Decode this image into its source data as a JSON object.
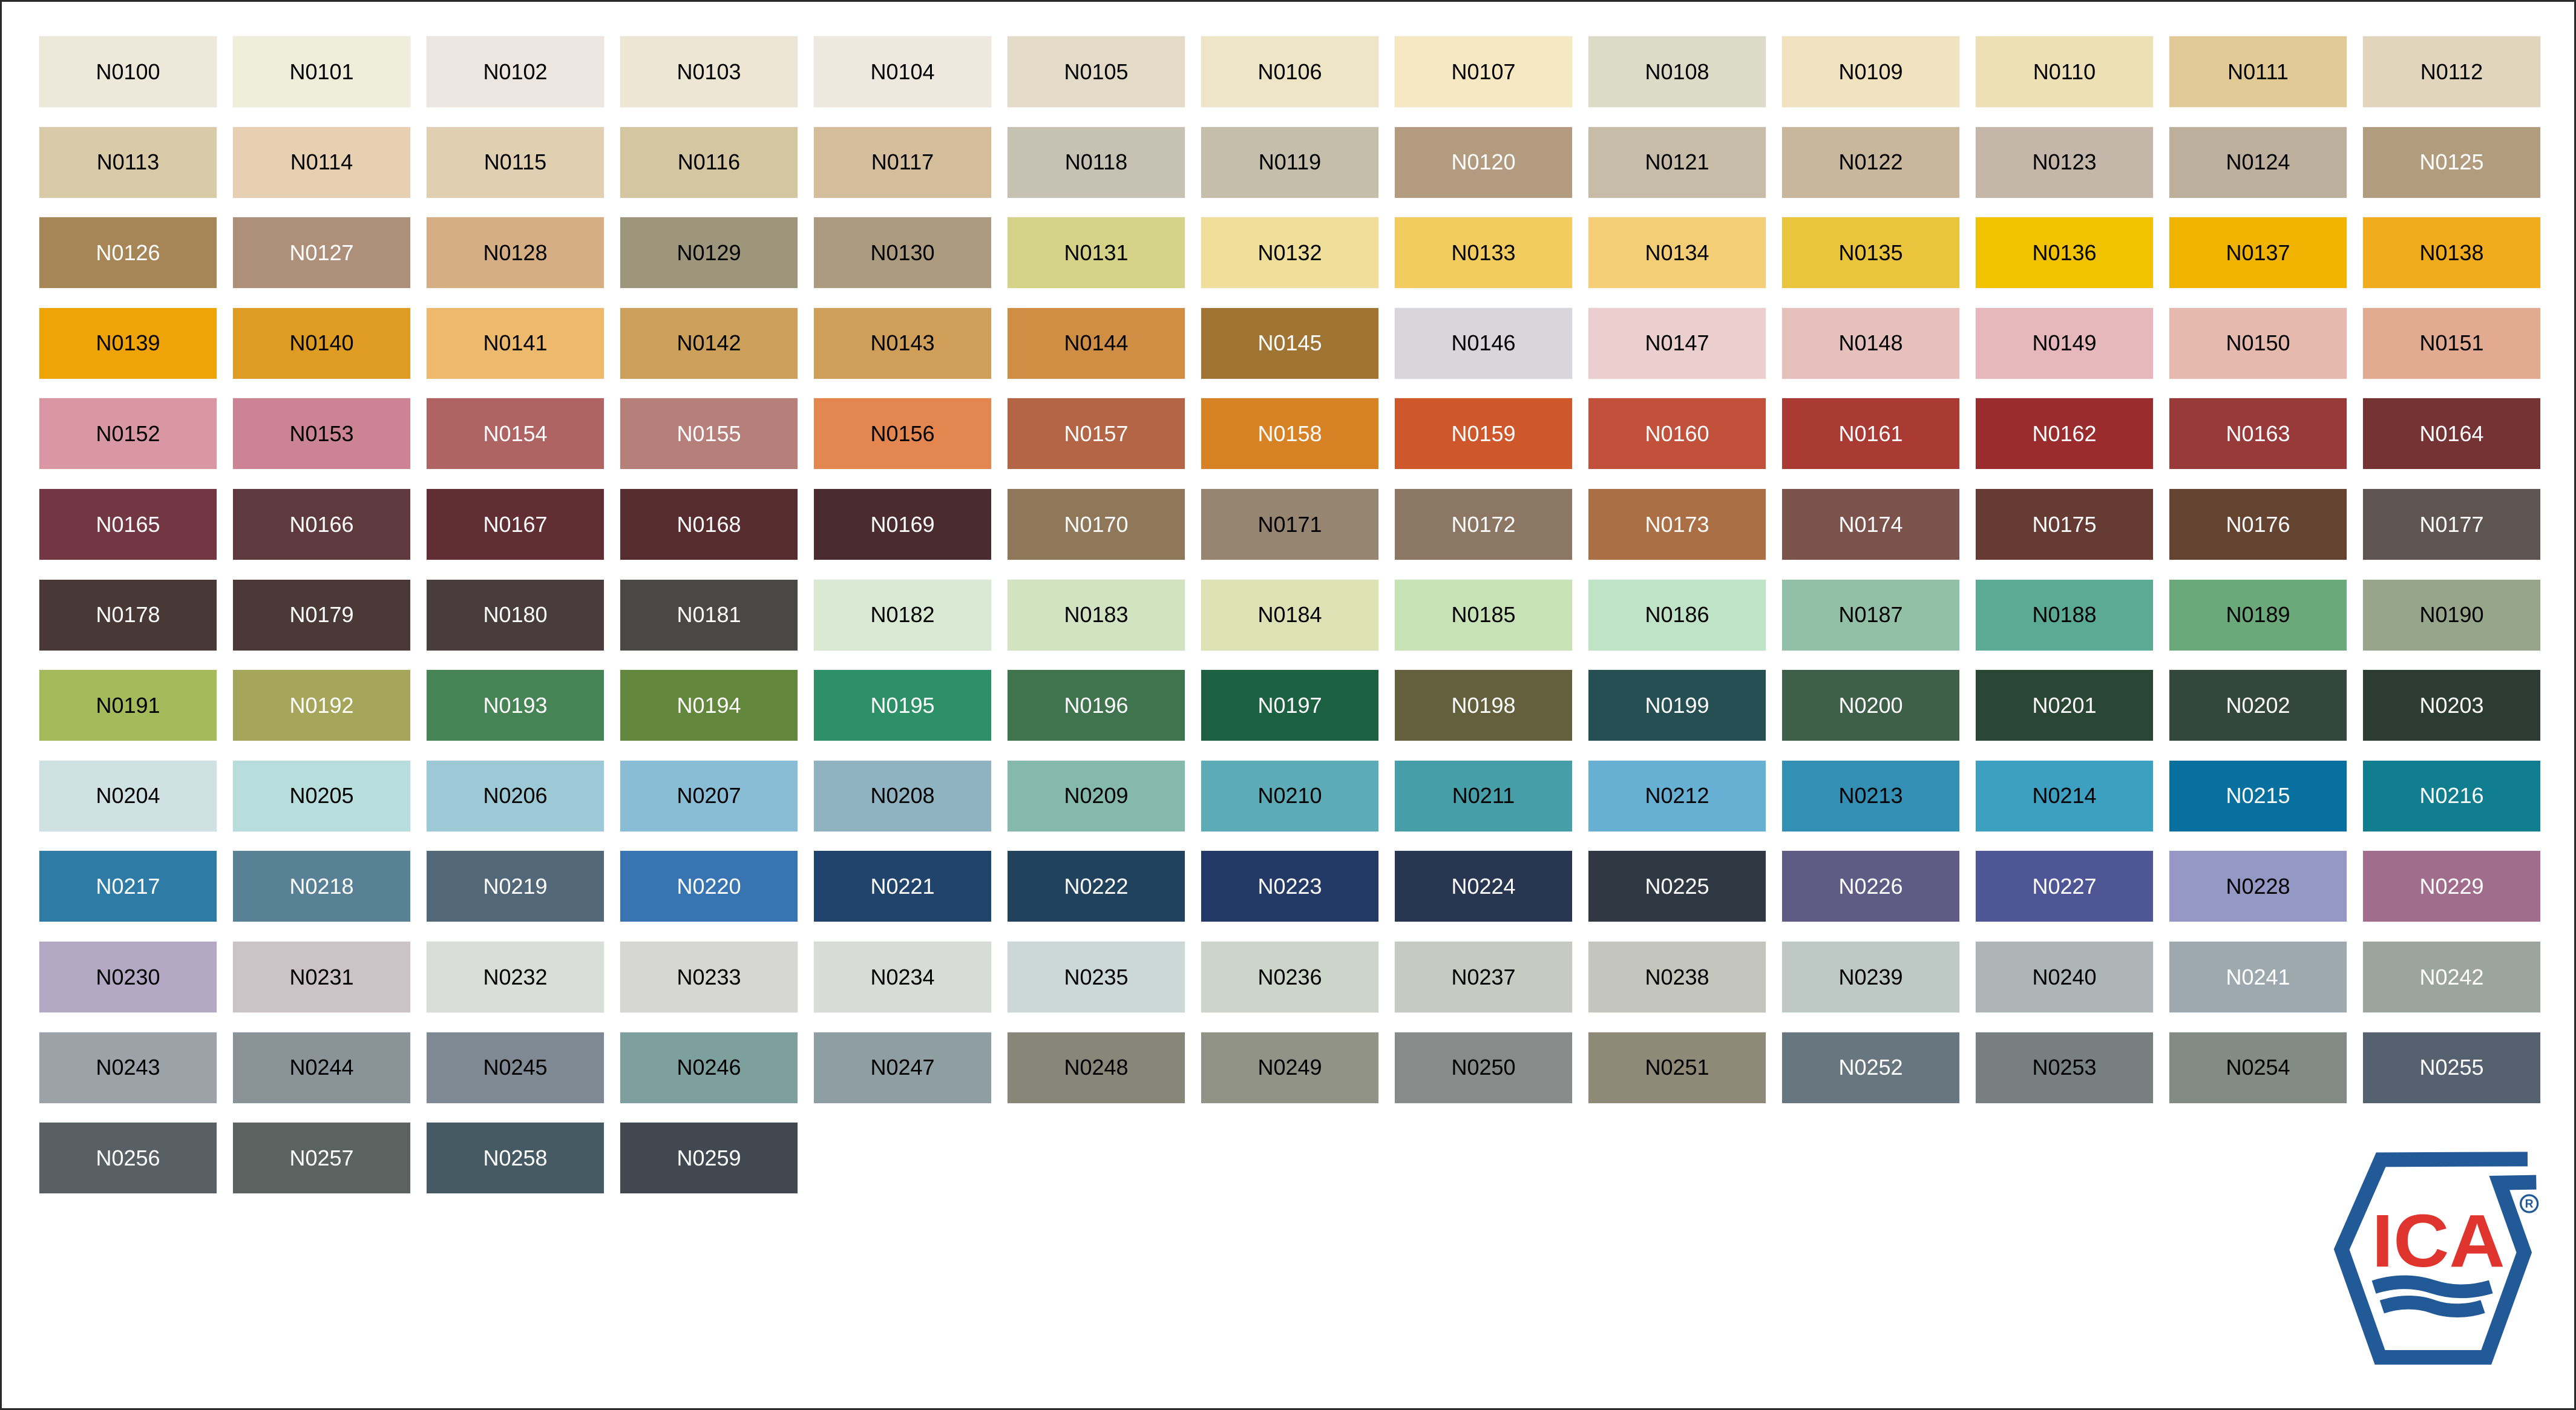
{
  "colors": {
    "logo_blue": "#225A97",
    "logo_red": "#E0342F"
  },
  "logo": {
    "text": "ICA",
    "registered": "R"
  },
  "swatches": [
    {
      "code": "N0100",
      "color": "#ECE9DA",
      "text": "#000000"
    },
    {
      "code": "N0101",
      "color": "#EFEEDA",
      "text": "#000000"
    },
    {
      "code": "N0102",
      "color": "#ECE5E0",
      "text": "#000000"
    },
    {
      "code": "N0103",
      "color": "#EEE6D5",
      "text": "#000000"
    },
    {
      "code": "N0104",
      "color": "#EFE8DE",
      "text": "#000000"
    },
    {
      "code": "N0105",
      "color": "#E3DAC7",
      "text": "#000000"
    },
    {
      "code": "N0106",
      "color": "#EEE5C7",
      "text": "#000000"
    },
    {
      "code": "N0107",
      "color": "#F7E8C4",
      "text": "#000000"
    },
    {
      "code": "N0108",
      "color": "#DCDBC8",
      "text": "#000000"
    },
    {
      "code": "N0109",
      "color": "#F1E2C0",
      "text": "#000000"
    },
    {
      "code": "N0110",
      "color": "#EDE0B4",
      "text": "#000000"
    },
    {
      "code": "N0111",
      "color": "#E2CA97",
      "text": "#000000"
    },
    {
      "code": "N0112",
      "color": "#E1D6BD",
      "text": "#000000"
    },
    {
      "code": "N0113",
      "color": "#DACBA8",
      "text": "#000000"
    },
    {
      "code": "N0114",
      "color": "#E7D0B2",
      "text": "#000000"
    },
    {
      "code": "N0115",
      "color": "#E0D0B1",
      "text": "#000000"
    },
    {
      "code": "N0116",
      "color": "#D4C6A0",
      "text": "#000000"
    },
    {
      "code": "N0117",
      "color": "#D4BD9B",
      "text": "#000000"
    },
    {
      "code": "N0118",
      "color": "#C5C1B3",
      "text": "#000000"
    },
    {
      "code": "N0119",
      "color": "#C4BEAA",
      "text": "#000000"
    },
    {
      "code": "N0120",
      "color": "#B29B7E",
      "text": "#FFFFFF"
    },
    {
      "code": "N0121",
      "color": "#C7BCA7",
      "text": "#000000"
    },
    {
      "code": "N0122",
      "color": "#C8B79C",
      "text": "#000000"
    },
    {
      "code": "N0123",
      "color": "#C4B6A8",
      "text": "#000000"
    },
    {
      "code": "N0124",
      "color": "#BCB09C",
      "text": "#000000"
    },
    {
      "code": "N0125",
      "color": "#B29C7E",
      "text": "#FFFFFF"
    },
    {
      "code": "N0126",
      "color": "#A68557",
      "text": "#FFFFFF"
    },
    {
      "code": "N0127",
      "color": "#AE8F7A",
      "text": "#FFFFFF"
    },
    {
      "code": "N0128",
      "color": "#D5AE84",
      "text": "#000000"
    },
    {
      "code": "N0129",
      "color": "#9D957C",
      "text": "#000000"
    },
    {
      "code": "N0130",
      "color": "#AC9B7F",
      "text": "#000000"
    },
    {
      "code": "N0131",
      "color": "#D5D387",
      "text": "#000000"
    },
    {
      "code": "N0132",
      "color": "#F0DF9A",
      "text": "#000000"
    },
    {
      "code": "N0133",
      "color": "#F3CC60",
      "text": "#000000"
    },
    {
      "code": "N0134",
      "color": "#F4CE77",
      "text": "#000000"
    },
    {
      "code": "N0135",
      "color": "#EBC43E",
      "text": "#000000"
    },
    {
      "code": "N0136",
      "color": "#F1C200",
      "text": "#000000"
    },
    {
      "code": "N0137",
      "color": "#F0B400",
      "text": "#000000"
    },
    {
      "code": "N0138",
      "color": "#F0AC1C",
      "text": "#000000"
    },
    {
      "code": "N0139",
      "color": "#EEA307",
      "text": "#000000"
    },
    {
      "code": "N0140",
      "color": "#DF9C23",
      "text": "#000000"
    },
    {
      "code": "N0141",
      "color": "#EDBA6D",
      "text": "#000000"
    },
    {
      "code": "N0142",
      "color": "#CCA05B",
      "text": "#000000"
    },
    {
      "code": "N0143",
      "color": "#CF9F5A",
      "text": "#000000"
    },
    {
      "code": "N0144",
      "color": "#D08D44",
      "text": "#000000"
    },
    {
      "code": "N0145",
      "color": "#A07433",
      "text": "#FFFFFF"
    },
    {
      "code": "N0146",
      "color": "#D8D6DB",
      "text": "#000000"
    },
    {
      "code": "N0147",
      "color": "#EBCFCE",
      "text": "#000000"
    },
    {
      "code": "N0148",
      "color": "#E6C0BC",
      "text": "#000000"
    },
    {
      "code": "N0149",
      "color": "#E6B8BB",
      "text": "#000000"
    },
    {
      "code": "N0150",
      "color": "#E5B9AE",
      "text": "#000000"
    },
    {
      "code": "N0151",
      "color": "#E1AA91",
      "text": "#000000"
    },
    {
      "code": "N0152",
      "color": "#D997A4",
      "text": "#000000"
    },
    {
      "code": "N0153",
      "color": "#CC8495",
      "text": "#000000"
    },
    {
      "code": "N0154",
      "color": "#B06363",
      "text": "#FFFFFF"
    },
    {
      "code": "N0155",
      "color": "#B67F79",
      "text": "#FFFFFF"
    },
    {
      "code": "N0156",
      "color": "#E4864F",
      "text": "#000000"
    },
    {
      "code": "N0157",
      "color": "#B36546",
      "text": "#FFFFFF"
    },
    {
      "code": "N0158",
      "color": "#D88226",
      "text": "#FFFFFF"
    },
    {
      "code": "N0159",
      "color": "#CE572B",
      "text": "#FFFFFF"
    },
    {
      "code": "N0160",
      "color": "#C1513B",
      "text": "#FFFFFF"
    },
    {
      "code": "N0161",
      "color": "#A93A34",
      "text": "#FFFFFF"
    },
    {
      "code": "N0162",
      "color": "#9A2C2D",
      "text": "#FFFFFF"
    },
    {
      "code": "N0163",
      "color": "#983A3A",
      "text": "#FFFFFF"
    },
    {
      "code": "N0164",
      "color": "#753433",
      "text": "#FFFFFF"
    },
    {
      "code": "N0165",
      "color": "#733643",
      "text": "#FFFFFF"
    },
    {
      "code": "N0166",
      "color": "#5E3A3E",
      "text": "#FFFFFF"
    },
    {
      "code": "N0167",
      "color": "#612E34",
      "text": "#FFFFFF"
    },
    {
      "code": "N0168",
      "color": "#572C2F",
      "text": "#FFFFFF"
    },
    {
      "code": "N0169",
      "color": "#4A2C30",
      "text": "#FFFFFF"
    },
    {
      "code": "N0170",
      "color": "#8F785A",
      "text": "#FFFFFF"
    },
    {
      "code": "N0171",
      "color": "#968570",
      "text": "#000000"
    },
    {
      "code": "N0172",
      "color": "#8B7763",
      "text": "#FFFFFF"
    },
    {
      "code": "N0173",
      "color": "#AA6F44",
      "text": "#FFFFFF"
    },
    {
      "code": "N0174",
      "color": "#7C524C",
      "text": "#FFFFFF"
    },
    {
      "code": "N0175",
      "color": "#663B33",
      "text": "#FFFFFF"
    },
    {
      "code": "N0176",
      "color": "#644330",
      "text": "#FFFFFF"
    },
    {
      "code": "N0177",
      "color": "#5E5553",
      "text": "#FFFFFF"
    },
    {
      "code": "N0178",
      "color": "#483936",
      "text": "#FFFFFF"
    },
    {
      "code": "N0179",
      "color": "#4A3937",
      "text": "#FFFFFF"
    },
    {
      "code": "N0180",
      "color": "#483C3C",
      "text": "#FFFFFF"
    },
    {
      "code": "N0181",
      "color": "#4A4845",
      "text": "#FFFFFF"
    },
    {
      "code": "N0182",
      "color": "#D9E9D3",
      "text": "#000000"
    },
    {
      "code": "N0183",
      "color": "#D2E3C1",
      "text": "#000000"
    },
    {
      "code": "N0184",
      "color": "#DCE2B4",
      "text": "#000000"
    },
    {
      "code": "N0185",
      "color": "#C7E2B4",
      "text": "#000000"
    },
    {
      "code": "N0186",
      "color": "#BFE3C7",
      "text": "#000000"
    },
    {
      "code": "N0187",
      "color": "#91C0A7",
      "text": "#000000"
    },
    {
      "code": "N0188",
      "color": "#5AAA94",
      "text": "#000000"
    },
    {
      "code": "N0189",
      "color": "#6BA87A",
      "text": "#000000"
    },
    {
      "code": "N0190",
      "color": "#97A68A",
      "text": "#000000"
    },
    {
      "code": "N0191",
      "color": "#A4BA5B",
      "text": "#000000"
    },
    {
      "code": "N0192",
      "color": "#A5A659",
      "text": "#FFFFFF"
    },
    {
      "code": "N0193",
      "color": "#478455",
      "text": "#FFFFFF"
    },
    {
      "code": "N0194",
      "color": "#63883D",
      "text": "#FFFFFF"
    },
    {
      "code": "N0195",
      "color": "#2E9068",
      "text": "#FFFFFF"
    },
    {
      "code": "N0196",
      "color": "#40744F",
      "text": "#FFFFFF"
    },
    {
      "code": "N0197",
      "color": "#1C6142",
      "text": "#FFFFFF"
    },
    {
      "code": "N0198",
      "color": "#64603D",
      "text": "#FFFFFF"
    },
    {
      "code": "N0199",
      "color": "#264F53",
      "text": "#FFFFFF"
    },
    {
      "code": "N0200",
      "color": "#3E6049",
      "text": "#FFFFFF"
    },
    {
      "code": "N0201",
      "color": "#294734",
      "text": "#FFFFFF"
    },
    {
      "code": "N0202",
      "color": "#33473F",
      "text": "#FFFFFF"
    },
    {
      "code": "N0203",
      "color": "#2C3B33",
      "text": "#FFFFFF"
    },
    {
      "code": "N0204",
      "color": "#CFE1E2",
      "text": "#000000"
    },
    {
      "code": "N0205",
      "color": "#B7DEDD",
      "text": "#000000"
    },
    {
      "code": "N0206",
      "color": "#9CC9D5",
      "text": "#000000"
    },
    {
      "code": "N0207",
      "color": "#89BCD5",
      "text": "#000000"
    },
    {
      "code": "N0208",
      "color": "#90B3C1",
      "text": "#000000"
    },
    {
      "code": "N0209",
      "color": "#84B9AC",
      "text": "#000000"
    },
    {
      "code": "N0210",
      "color": "#5DABB6",
      "text": "#000000"
    },
    {
      "code": "N0211",
      "color": "#469FA8",
      "text": "#000000"
    },
    {
      "code": "N0212",
      "color": "#67B0D3",
      "text": "#000000"
    },
    {
      "code": "N0213",
      "color": "#348FB5",
      "text": "#000000"
    },
    {
      "code": "N0214",
      "color": "#3EA0C1",
      "text": "#000000"
    },
    {
      "code": "N0215",
      "color": "#07709F",
      "text": "#FFFFFF"
    },
    {
      "code": "N0216",
      "color": "#117E8F",
      "text": "#FFFFFF"
    },
    {
      "code": "N0217",
      "color": "#2E7BA5",
      "text": "#FFFFFF"
    },
    {
      "code": "N0218",
      "color": "#598196",
      "text": "#FFFFFF"
    },
    {
      "code": "N0219",
      "color": "#526777",
      "text": "#FFFFFF"
    },
    {
      "code": "N0220",
      "color": "#3874B1",
      "text": "#FFFFFF"
    },
    {
      "code": "N0221",
      "color": "#21446C",
      "text": "#FFFFFF"
    },
    {
      "code": "N0222",
      "color": "#20425C",
      "text": "#FFFFFF"
    },
    {
      "code": "N0223",
      "color": "#243A66",
      "text": "#FFFFFF"
    },
    {
      "code": "N0224",
      "color": "#283651",
      "text": "#FFFFFF"
    },
    {
      "code": "N0225",
      "color": "#2F3843",
      "text": "#FFFFFF"
    },
    {
      "code": "N0226",
      "color": "#605B84",
      "text": "#FFFFFF"
    },
    {
      "code": "N0227",
      "color": "#4F5695",
      "text": "#FFFFFF"
    },
    {
      "code": "N0228",
      "color": "#9598C4",
      "text": "#000000"
    },
    {
      "code": "N0229",
      "color": "#A06D8C",
      "text": "#FFFFFF"
    },
    {
      "code": "N0230",
      "color": "#B3A9C4",
      "text": "#000000"
    },
    {
      "code": "N0231",
      "color": "#CCC3C6",
      "text": "#000000"
    },
    {
      "code": "N0232",
      "color": "#DADED9",
      "text": "#000000"
    },
    {
      "code": "N0233",
      "color": "#D6D7D3",
      "text": "#000000"
    },
    {
      "code": "N0234",
      "color": "#D8DCD7",
      "text": "#000000"
    },
    {
      "code": "N0235",
      "color": "#CCD8D5",
      "text": "#000000"
    },
    {
      "code": "N0236",
      "color": "#CDD4C9",
      "text": "#000000"
    },
    {
      "code": "N0237",
      "color": "#C7C9C3",
      "text": "#000000"
    },
    {
      "code": "N0238",
      "color": "#C4C5BC",
      "text": "#000000"
    },
    {
      "code": "N0239",
      "color": "#BEC8C4",
      "text": "#000000"
    },
    {
      "code": "N0240",
      "color": "#AEB5B6",
      "text": "#000000"
    },
    {
      "code": "N0241",
      "color": "#9DA9AF",
      "text": "#FFFFFF"
    },
    {
      "code": "N0242",
      "color": "#9CA49E",
      "text": "#FFFFFF"
    },
    {
      "code": "N0243",
      "color": "#9CA2A7",
      "text": "#000000"
    },
    {
      "code": "N0244",
      "color": "#8A9498",
      "text": "#000000"
    },
    {
      "code": "N0245",
      "color": "#7E8994",
      "text": "#000000"
    },
    {
      "code": "N0246",
      "color": "#7DA09E",
      "text": "#000000"
    },
    {
      "code": "N0247",
      "color": "#8E9EA2",
      "text": "#000000"
    },
    {
      "code": "N0248",
      "color": "#868779",
      "text": "#000000"
    },
    {
      "code": "N0249",
      "color": "#919386",
      "text": "#000000"
    },
    {
      "code": "N0250",
      "color": "#878B8A",
      "text": "#000000"
    },
    {
      "code": "N0251",
      "color": "#8F8977",
      "text": "#000000"
    },
    {
      "code": "N0252",
      "color": "#68767F",
      "text": "#FFFFFF"
    },
    {
      "code": "N0253",
      "color": "#777F7F",
      "text": "#000000"
    },
    {
      "code": "N0254",
      "color": "#848A86",
      "text": "#000000"
    },
    {
      "code": "N0255",
      "color": "#55616E",
      "text": "#FFFFFF"
    },
    {
      "code": "N0256",
      "color": "#596063",
      "text": "#FFFFFF"
    },
    {
      "code": "N0257",
      "color": "#5C6260",
      "text": "#FFFFFF"
    },
    {
      "code": "N0258",
      "color": "#465A63",
      "text": "#FFFFFF"
    },
    {
      "code": "N0259",
      "color": "#414850",
      "text": "#FFFFFF"
    }
  ]
}
